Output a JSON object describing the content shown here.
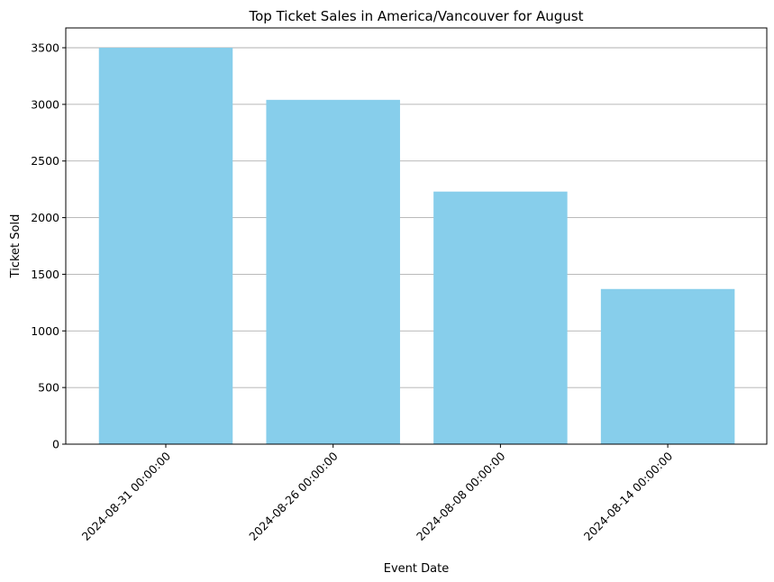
{
  "chart_data": {
    "type": "bar",
    "title": "Top Ticket Sales in America/Vancouver for August",
    "xlabel": "Event Date",
    "ylabel": "Ticket Sold",
    "categories": [
      "2024-08-31 00:00:00",
      "2024-08-26 00:00:00",
      "2024-08-08 00:00:00",
      "2024-08-14 00:00:00"
    ],
    "values": [
      3500,
      3040,
      2230,
      1370
    ],
    "ylim": [
      0,
      3675
    ],
    "yticks": [
      0,
      500,
      1000,
      1500,
      2000,
      2500,
      3000,
      3500
    ],
    "xtick_rotation": 45,
    "grid": "y",
    "bar_color": "#87ceeb"
  }
}
